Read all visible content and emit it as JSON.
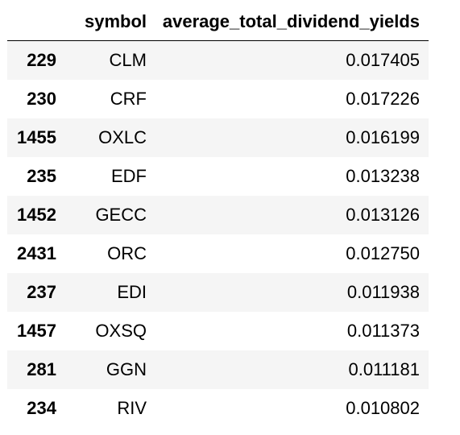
{
  "table": {
    "columns": {
      "index": "",
      "symbol": "symbol",
      "value": "average_total_dividend_yields"
    },
    "rows": [
      {
        "index": "229",
        "symbol": "CLM",
        "value": "0.017405"
      },
      {
        "index": "230",
        "symbol": "CRF",
        "value": "0.017226"
      },
      {
        "index": "1455",
        "symbol": "OXLC",
        "value": "0.016199"
      },
      {
        "index": "235",
        "symbol": "EDF",
        "value": "0.013238"
      },
      {
        "index": "1452",
        "symbol": "GECC",
        "value": "0.013126"
      },
      {
        "index": "2431",
        "symbol": "ORC",
        "value": "0.012750"
      },
      {
        "index": "237",
        "symbol": "EDI",
        "value": "0.011938"
      },
      {
        "index": "1457",
        "symbol": "OXSQ",
        "value": "0.011373"
      },
      {
        "index": "281",
        "symbol": "GGN",
        "value": "0.011181"
      },
      {
        "index": "234",
        "symbol": "RIV",
        "value": "0.010802"
      }
    ]
  }
}
